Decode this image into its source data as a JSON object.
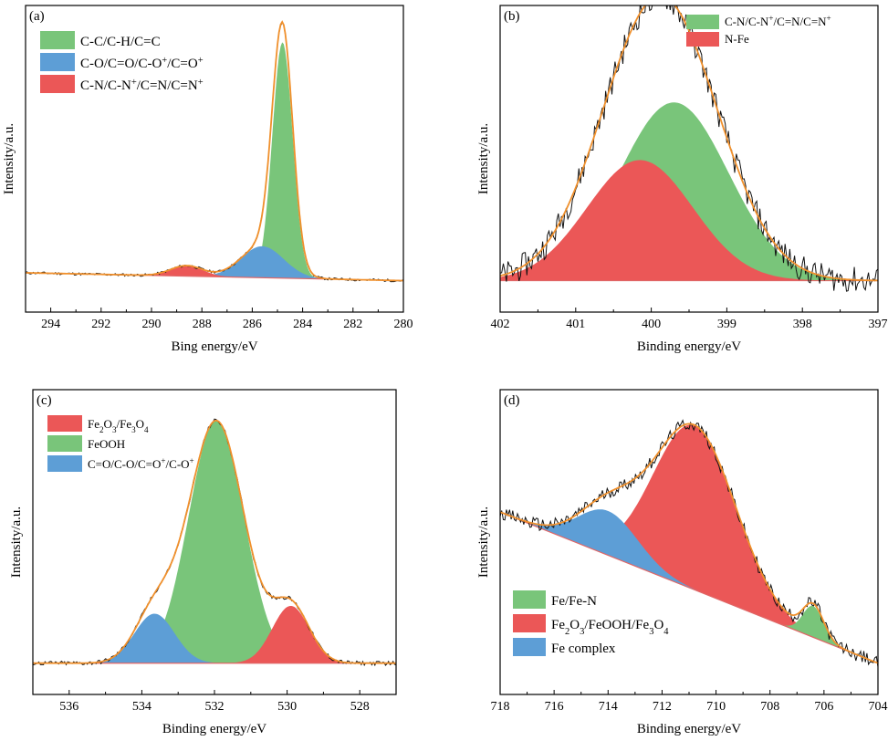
{
  "figure": {
    "panel_count": 4
  },
  "chart_data": [
    {
      "type": "area",
      "panel_label": "(a)",
      "xlabel": "Bing energy/eV",
      "ylabel": "Intensity/a.u.",
      "xlim": [
        295,
        280
      ],
      "ylim": [
        -12,
        105
      ],
      "x_ticks": [
        "294",
        "292",
        "290",
        "288",
        "286",
        "284",
        "282",
        "280"
      ],
      "legend_position": "top-left",
      "baseline": [
        [
          295,
          3.0
        ],
        [
          280,
          0.0
        ]
      ],
      "components": [
        {
          "name": "C-C/C-H/C=C",
          "label_parts": [
            "C-C/C-H/C=C"
          ],
          "color": "#79c57a",
          "center": 284.8,
          "height": 90,
          "fwhm": 0.95
        },
        {
          "name": "C-O/C=O/C-O+/C=O+",
          "label_parts": [
            "C-O/C=O/C-O",
            "+",
            "/C=O",
            "+"
          ],
          "color": "#5d9ed6",
          "center": 285.6,
          "height": 12,
          "fwhm": 2.0
        },
        {
          "name": "C-N/C-N+/C=N/C=N+",
          "label_parts": [
            "C-N/C-N",
            "+",
            "/C=N/C=N",
            "+"
          ],
          "color": "#eb5757",
          "center": 288.6,
          "height": 4,
          "fwhm": 1.5
        }
      ],
      "raw_noise": 0.5
    },
    {
      "type": "area",
      "panel_label": "(b)",
      "xlabel": "Binding energy/eV",
      "ylabel": "Intensity/a.u.",
      "xlim": [
        402,
        397
      ],
      "ylim": [
        -12,
        105
      ],
      "x_ticks": [
        "402",
        "401",
        "400",
        "399",
        "398",
        "397"
      ],
      "legend_position": "top-right",
      "baseline": [
        [
          402,
          0.0
        ],
        [
          397,
          0.0
        ]
      ],
      "components": [
        {
          "name": "C-N/C-N+/C=N/C=N+",
          "label_parts": [
            "C-N/C-N",
            "+",
            "/C=N/C=N",
            "+"
          ],
          "color": "#79c57a",
          "center": 399.7,
          "height": 68,
          "fwhm": 1.7
        },
        {
          "name": "N-Fe",
          "label_parts": [
            "N-Fe"
          ],
          "color": "#eb5757",
          "center": 400.15,
          "height": 46,
          "fwhm": 1.65
        }
      ],
      "raw_noise": 5.0
    },
    {
      "type": "area",
      "panel_label": "(c)",
      "xlabel": "Binding energy/eV",
      "ylabel": "Intensity/a.u.",
      "xlim": [
        537,
        527
      ],
      "ylim": [
        -12,
        105
      ],
      "x_ticks": [
        "536",
        "534",
        "532",
        "530",
        "528"
      ],
      "legend_position": "top-left",
      "baseline": [
        [
          537,
          0.0
        ],
        [
          527,
          0.0
        ]
      ],
      "components": [
        {
          "name": "Fe2O3/Fe3O4",
          "label_parts": [
            "Fe",
            "_2",
            "O",
            "_3",
            "/Fe",
            "_3",
            "O",
            "_4"
          ],
          "color": "#eb5757",
          "center": 529.9,
          "height": 22,
          "fwhm": 1.2
        },
        {
          "name": "FeOOH",
          "label_parts": [
            "FeOOH"
          ],
          "color": "#79c57a",
          "center": 531.95,
          "height": 93,
          "fwhm": 1.8
        },
        {
          "name": "C=O/C-O/C=O+/C-O+",
          "label_parts": [
            "C=O/C-O/C=O",
            "+",
            "/C-O",
            "+"
          ],
          "color": "#5d9ed6",
          "center": 533.65,
          "height": 19,
          "fwhm": 1.3
        }
      ],
      "raw_noise": 0.8
    },
    {
      "type": "area",
      "panel_label": "(d)",
      "xlabel": "Binding energy/eV",
      "ylabel": "Intensity/a.u.",
      "xlim": [
        718,
        704
      ],
      "ylim": [
        -12,
        105
      ],
      "x_ticks": [
        "718",
        "716",
        "714",
        "712",
        "710",
        "708",
        "706",
        "704"
      ],
      "legend_position": "bottom-left",
      "baseline": [
        [
          718,
          58.0
        ],
        [
          704,
          0.0
        ]
      ],
      "components": [
        {
          "name": "Fe/Fe-N",
          "label_parts": [
            "Fe/Fe-N"
          ],
          "color": "#79c57a",
          "center": 706.4,
          "height": 12,
          "fwhm": 0.9
        },
        {
          "name": "Fe2O3/FeOOH/Fe3O4",
          "label_parts": [
            "Fe",
            "_2",
            "O",
            "_3",
            "/FeOOH/Fe",
            "_3",
            "O",
            "_4"
          ],
          "color": "#eb5757",
          "center": 710.8,
          "height": 63,
          "fwhm": 3.6
        },
        {
          "name": "Fe complex",
          "label_parts": [
            "Fe complex"
          ],
          "color": "#5d9ed6",
          "center": 714.0,
          "height": 17,
          "fwhm": 2.6
        }
      ],
      "raw_noise": 2.5
    }
  ]
}
